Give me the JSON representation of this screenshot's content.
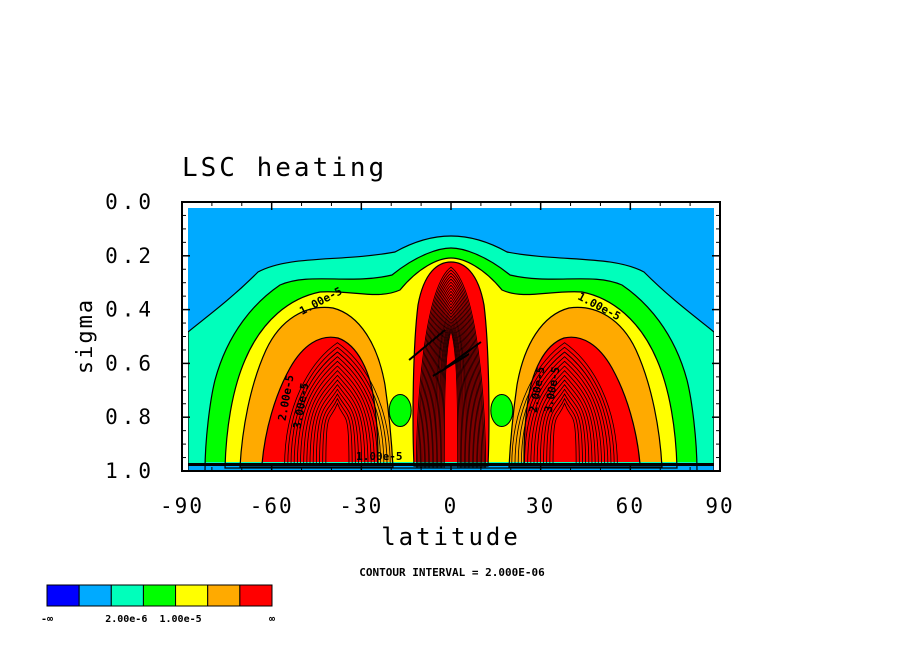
{
  "chart_data": {
    "type": "heatmap",
    "title": "LSC heating",
    "xlabel": "latitude",
    "ylabel": "sigma",
    "xlim": [
      -90,
      90
    ],
    "ylim": [
      0.0,
      1.0
    ],
    "y_inverted": true,
    "x_ticks": [
      "-90",
      "-60",
      "-30",
      "0",
      "30",
      "60",
      "90"
    ],
    "x_tick_values": [
      -90,
      -60,
      -30,
      0,
      30,
      60,
      90
    ],
    "y_ticks": [
      "0.0",
      "0.2",
      "0.4",
      "0.6",
      "0.8",
      "1.0"
    ],
    "y_tick_values": [
      0.0,
      0.2,
      0.4,
      0.6,
      0.8,
      1.0
    ],
    "contour_interval_text": "CONTOUR INTERVAL = 2.000E-06",
    "contour_labels": [
      {
        "text": "1.00e-5",
        "lat": -43,
        "sigma": 0.38,
        "angle": -28
      },
      {
        "text": "1.00e-5",
        "lat": 49,
        "sigma": 0.4,
        "angle": 28
      },
      {
        "text": "2.00e-5",
        "lat": -54,
        "sigma": 0.73,
        "angle": -80
      },
      {
        "text": "3.00e-5",
        "lat": -49,
        "sigma": 0.76,
        "angle": -80
      },
      {
        "text": "2.00e-5",
        "lat": 30,
        "sigma": 0.7,
        "angle": -80
      },
      {
        "text": "3.00e-5",
        "lat": 35,
        "sigma": 0.7,
        "angle": -80
      },
      {
        "text": "1.00e-5",
        "lat": -24,
        "sigma": 0.96,
        "angle": 0
      }
    ],
    "colorbar": {
      "colors": [
        "#0000ff",
        "#00aaff",
        "#00ffbb",
        "#00ff00",
        "#ffff00",
        "#ffaa00",
        "#ff0000"
      ],
      "labels": [
        "-∞",
        "2.00e-6",
        "1.00e-5",
        "∞"
      ]
    },
    "field": {
      "background": {
        "value": 1e-06,
        "color": "#00aaff"
      },
      "regions": [
        {
          "name": "outer-envelope",
          "color": "#00ffbb",
          "value": 4e-06
        },
        {
          "name": "mid-envelope",
          "color": "#00ff00",
          "value": 8e-06
        },
        {
          "name": "inner-envelope",
          "color": "#ffff00",
          "value": 1.2e-05
        },
        {
          "name": "south-orange",
          "color": "#ffaa00",
          "value": 2e-05
        },
        {
          "name": "south-red-core",
          "color": "#ff0000",
          "value": 3.5e-05
        },
        {
          "name": "north-orange",
          "color": "#ffaa00",
          "value": 2e-05
        },
        {
          "name": "north-red-core",
          "color": "#ff0000",
          "value": 3.5e-05
        },
        {
          "name": "equatorial-red",
          "color": "#ff0000",
          "value": 6e-05
        }
      ]
    }
  }
}
